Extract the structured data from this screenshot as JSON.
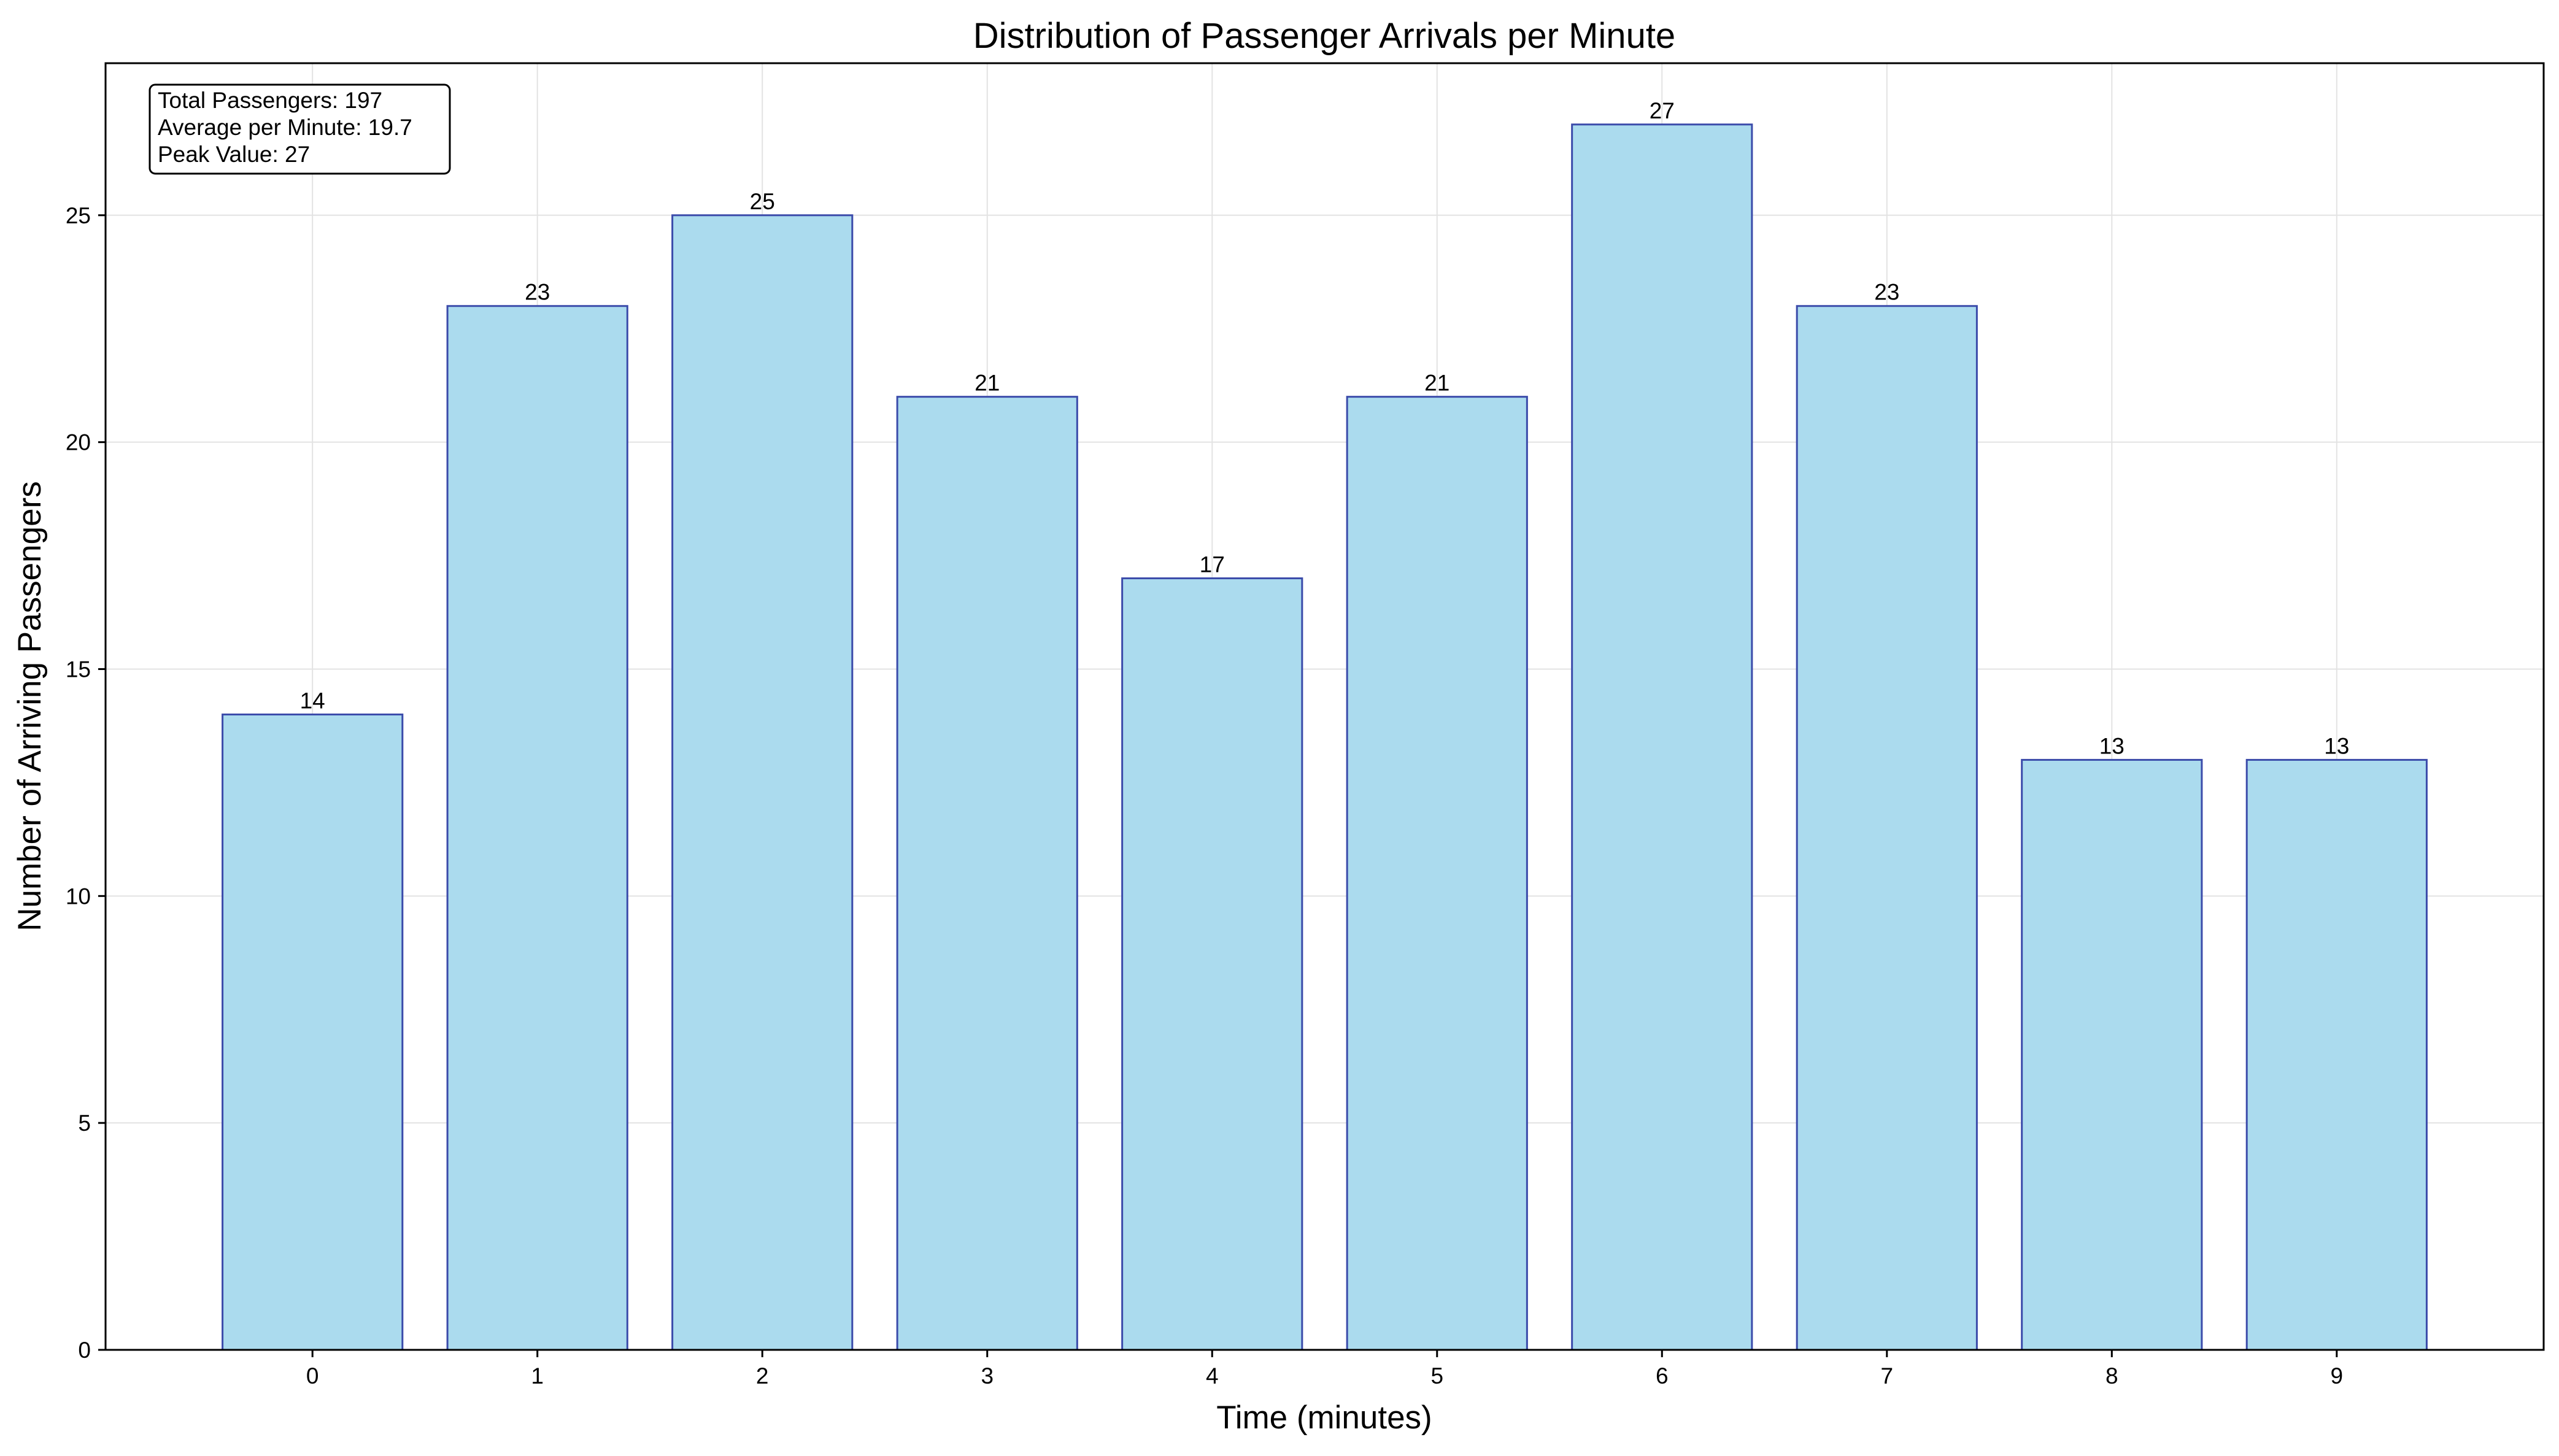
{
  "chart_data": {
    "type": "bar",
    "title": "Distribution of Passenger Arrivals per Minute",
    "xlabel": "Time (minutes)",
    "ylabel": "Number of Arriving Passengers",
    "categories": [
      "0",
      "1",
      "2",
      "3",
      "4",
      "5",
      "6",
      "7",
      "8",
      "9"
    ],
    "values": [
      14,
      23,
      25,
      21,
      17,
      21,
      27,
      23,
      13,
      13
    ],
    "data_labels": [
      "14",
      "23",
      "25",
      "21",
      "17",
      "21",
      "27",
      "23",
      "13",
      "13"
    ],
    "xlim": [
      -0.92,
      9.92
    ],
    "ylim": [
      0,
      28.35
    ],
    "yticks": [
      0,
      5,
      10,
      15,
      20,
      25
    ],
    "ytick_labels": [
      "0",
      "5",
      "10",
      "15",
      "20",
      "25"
    ],
    "grid": true,
    "bar_fill": "#ABDBEE",
    "bar_edge": "#3B4BAA",
    "grid_color": "#E3E3E3",
    "stats_box": {
      "lines": [
        "Total Passengers: 197",
        "Average per Minute: 19.7",
        "Peak Value: 27"
      ],
      "placement": "top-left"
    }
  }
}
